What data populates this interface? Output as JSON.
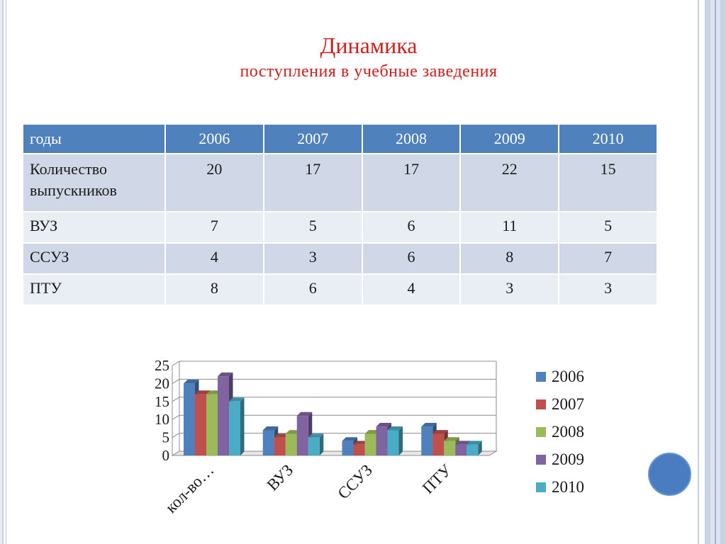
{
  "title": {
    "line1": "Динамика",
    "line2": "поступления в учебные заведения"
  },
  "table": {
    "header": [
      "годы",
      "2006",
      "2007",
      "2008",
      "2009",
      "2010"
    ],
    "rows": [
      {
        "label": "Количество выпускников",
        "values": [
          "20",
          "17",
          "17",
          "22",
          "15"
        ]
      },
      {
        "label": "ВУЗ",
        "values": [
          "7",
          "5",
          "6",
          "11",
          "5"
        ]
      },
      {
        "label": "ССУЗ",
        "values": [
          "4",
          "3",
          "6",
          "8",
          "7"
        ]
      },
      {
        "label": "ПТУ",
        "values": [
          "8",
          "6",
          "4",
          "3",
          "3"
        ]
      }
    ]
  },
  "colors": {
    "title": "#d21e1e",
    "table_header": "#4f81bd",
    "row_odd": "#d0d8e8",
    "row_even": "#e9edf4",
    "decor_circle": "#4a7cc1"
  },
  "chart_data": {
    "type": "bar",
    "style": "3d-clustered",
    "categories": [
      "кол-во…",
      "ВУЗ",
      "ССУЗ",
      "ПТУ"
    ],
    "series": [
      {
        "name": "2006",
        "values": [
          20,
          7,
          4,
          8
        ],
        "color": "#4f81bd"
      },
      {
        "name": "2007",
        "values": [
          17,
          5,
          3,
          6
        ],
        "color": "#c0504d"
      },
      {
        "name": "2008",
        "values": [
          17,
          6,
          6,
          4
        ],
        "color": "#9bbb59"
      },
      {
        "name": "2009",
        "values": [
          22,
          11,
          8,
          3
        ],
        "color": "#8064a2"
      },
      {
        "name": "2010",
        "values": [
          15,
          5,
          7,
          3
        ],
        "color": "#4bacc6"
      }
    ],
    "yticks": [
      "0",
      "5",
      "10",
      "15",
      "20",
      "25"
    ],
    "ylim": [
      0,
      25
    ],
    "grid": true,
    "legend": "right"
  }
}
